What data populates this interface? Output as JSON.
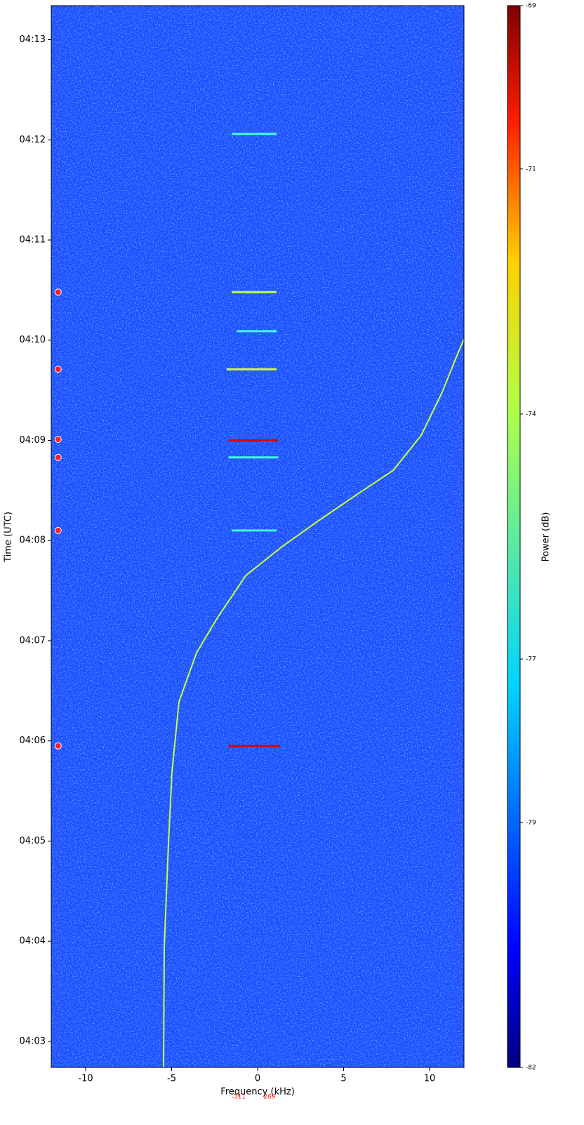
{
  "chart_data": {
    "type": "spectrogram",
    "xlabel": "Frequency (kHz)",
    "ylabel": "Time (UTC)",
    "colorbar_label": "Power (dB)",
    "xlim": [
      -12,
      12
    ],
    "xticks": [
      -10,
      -5,
      0,
      5,
      10
    ],
    "ylim": [
      2.74,
      13.34
    ],
    "yticks": [
      {
        "value": 3,
        "label": "04:03"
      },
      {
        "value": 4,
        "label": "04:04"
      },
      {
        "value": 5,
        "label": "04:05"
      },
      {
        "value": 6,
        "label": "04:06"
      },
      {
        "value": 7,
        "label": "04:07"
      },
      {
        "value": 8,
        "label": "04:08"
      },
      {
        "value": 9,
        "label": "04:09"
      },
      {
        "value": 10,
        "label": "04:10"
      },
      {
        "value": 11,
        "label": "04:11"
      },
      {
        "value": 12,
        "label": "04:12"
      },
      {
        "value": 13,
        "label": "04:13"
      }
    ],
    "clim": [
      -82,
      -69
    ],
    "cticks": [
      -69,
      -71,
      -74,
      -77,
      -79,
      -82
    ],
    "cmap": "jet",
    "series": [
      {
        "color": "#c8ff3c",
        "x": [
          -5.47,
          -5.43,
          -5.18,
          -4.98,
          -4.57,
          -3.55,
          -2.33,
          -0.69,
          1.35,
          3.39,
          5.43,
          7.88,
          9.51,
          10.73,
          11.55,
          12.0
        ],
        "y": [
          2.74,
          3.94,
          4.99,
          5.69,
          6.39,
          6.88,
          7.23,
          7.65,
          7.93,
          8.18,
          8.42,
          8.7,
          9.05,
          9.48,
          9.83,
          10.01
        ]
      }
    ],
    "bursts": [
      {
        "t": 12.06,
        "x": [
          -1.5,
          1.1
        ],
        "color": "#40ffd8"
      },
      {
        "t": 10.48,
        "x": [
          -1.5,
          1.1
        ],
        "color": "#b5ff4a"
      },
      {
        "t": 10.09,
        "x": [
          -1.2,
          1.1
        ],
        "color": "#40ffd8"
      },
      {
        "t": 9.71,
        "x": [
          -1.8,
          1.1
        ],
        "color": "#d4ff30"
      },
      {
        "t": 9.0,
        "x": [
          -1.7,
          1.2
        ],
        "color": "#e00000"
      },
      {
        "t": 8.83,
        "x": [
          -1.7,
          1.2
        ],
        "color": "#40ffd8"
      },
      {
        "t": 8.1,
        "x": [
          -1.5,
          1.1
        ],
        "color": "#40ffd8"
      },
      {
        "t": 5.95,
        "x": [
          -1.7,
          1.3
        ],
        "color": "#e00000"
      }
    ],
    "events": {
      "x": -11.6,
      "t": [
        10.48,
        9.71,
        9.01,
        8.83,
        8.1,
        5.95
      ],
      "color": "#ff2020"
    },
    "annotations": [
      "-311",
      "269"
    ]
  }
}
